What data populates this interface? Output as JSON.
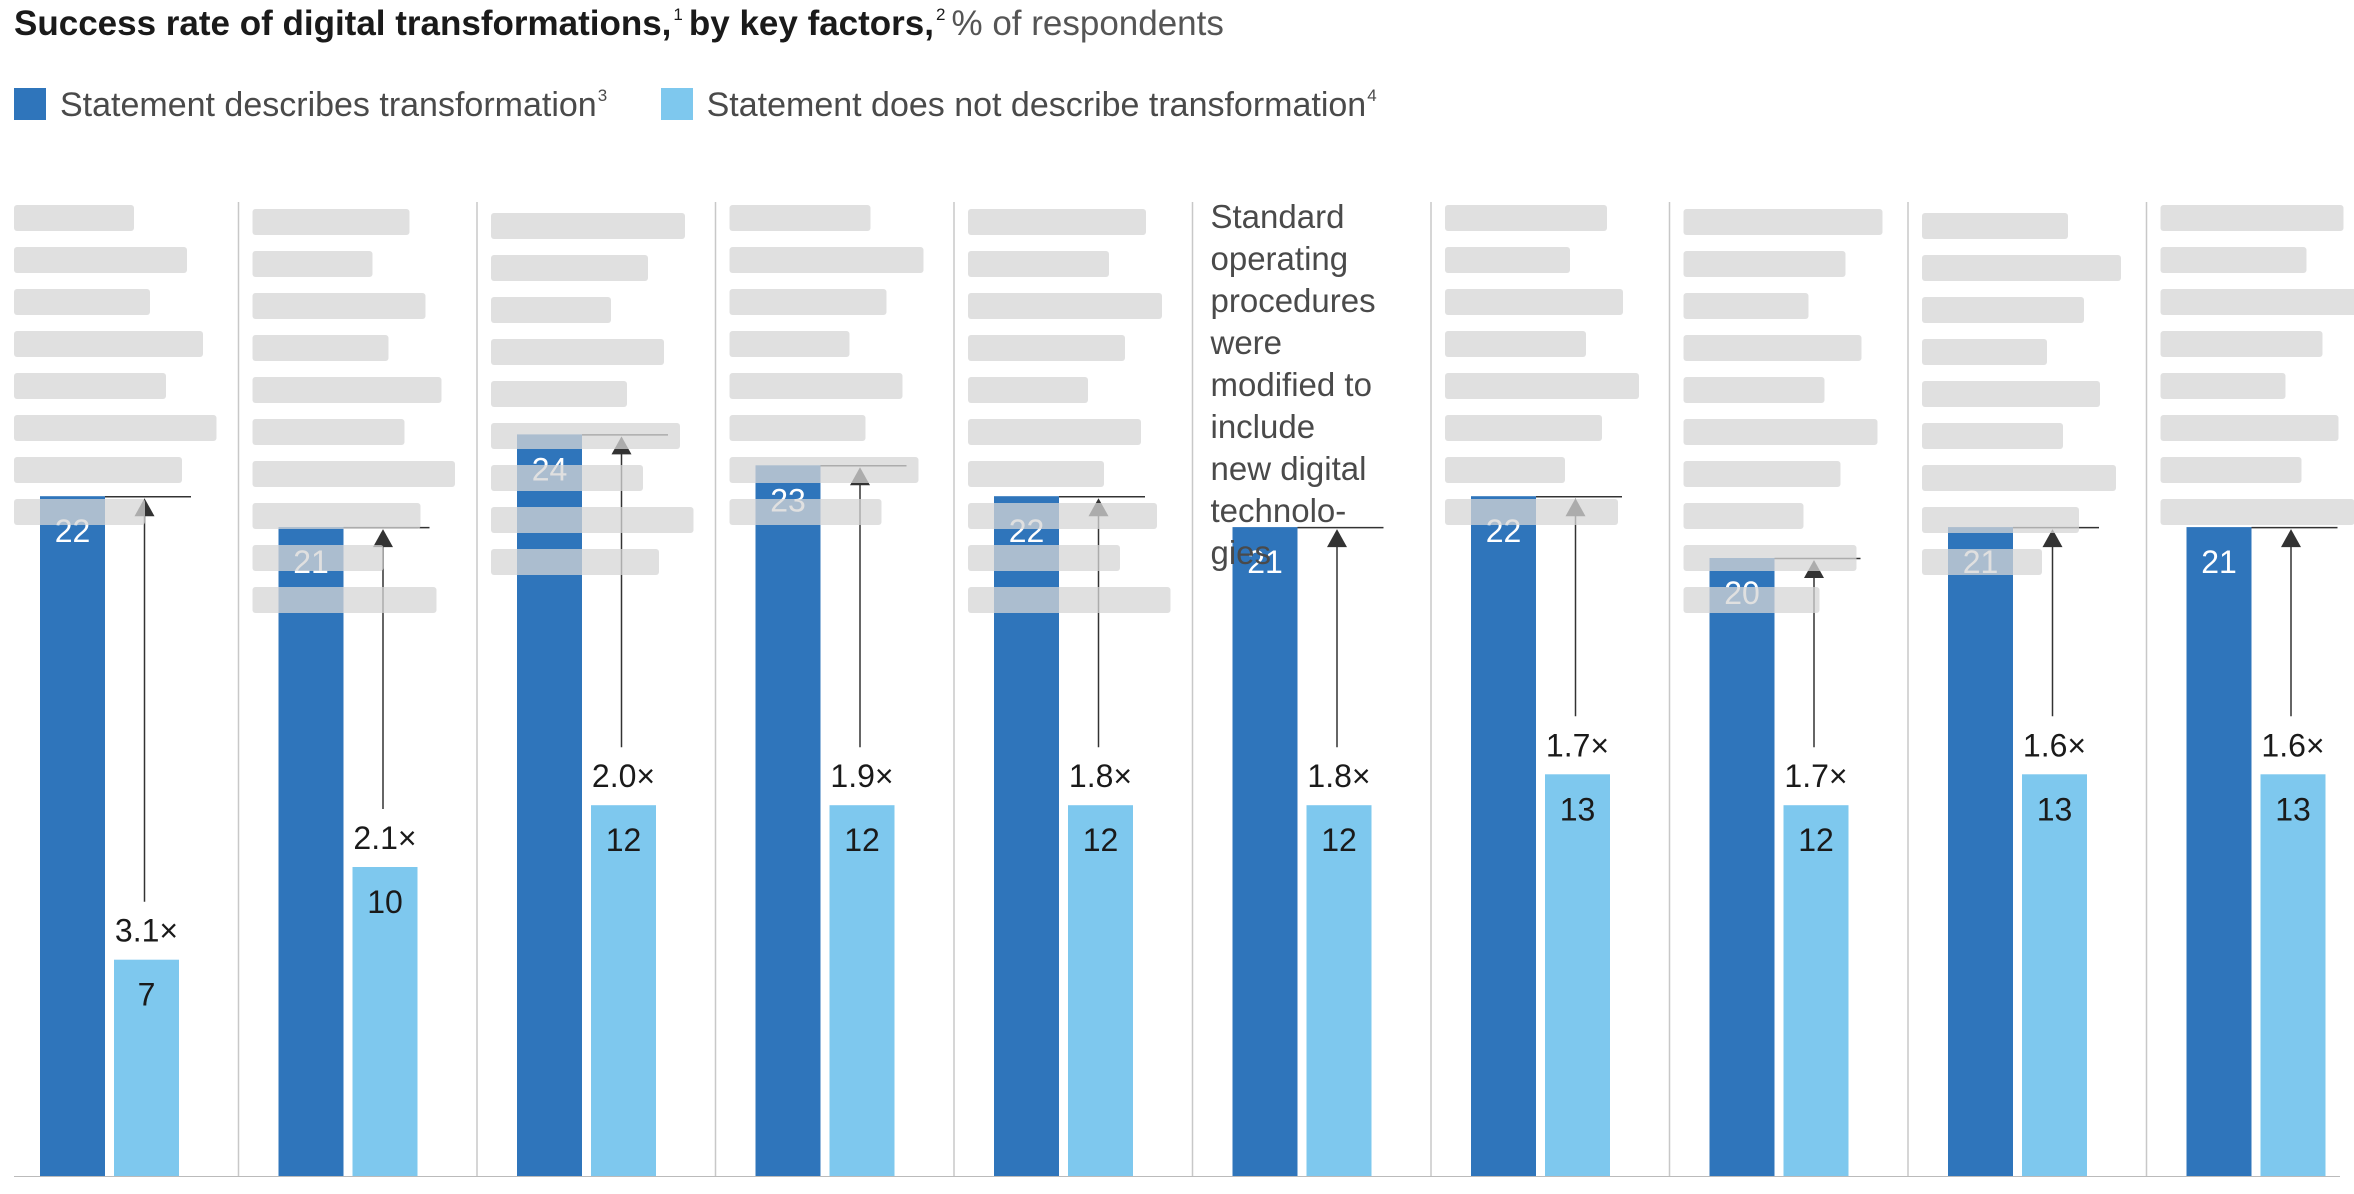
{
  "colors": {
    "describes": "#2f75bb",
    "does_not_describe": "#7ec8ee",
    "divider": "#c8c8c8",
    "arrow": "#333333",
    "redacted": "#d6d6d6"
  },
  "chart_data": {
    "type": "bar",
    "title": "Success rate of digital transformations,",
    "title_sup1": "1",
    "title_mid": "by key factors,",
    "title_sup2": "2",
    "title_unit": "% of respondents",
    "categories": [
      "",
      "",
      "",
      "",
      "",
      "Standard operating procedures were modified to include new digital technologies",
      "",
      "",
      "",
      ""
    ],
    "category_lines": [
      [],
      [],
      [],
      [],
      [],
      [
        "Standard",
        "operating",
        "procedures",
        "were",
        "modified to",
        "include",
        "new digital",
        "technolo-",
        "gies"
      ],
      [],
      [],
      [],
      []
    ],
    "series": [
      {
        "name": "Statement describes transformation",
        "footnote": "3",
        "values": [
          22,
          21,
          24,
          23,
          22,
          21,
          22,
          20,
          21,
          21
        ]
      },
      {
        "name": "Statement does not describe transformation",
        "footnote": "4",
        "values": [
          7,
          10,
          12,
          12,
          12,
          12,
          13,
          12,
          13,
          13
        ]
      }
    ],
    "multipliers": [
      "3.1×",
      "2.1×",
      "2.0×",
      "1.9×",
      "1.8×",
      "1.8×",
      "1.7×",
      "1.7×",
      "1.6×",
      "1.6×"
    ],
    "ylim": [
      0,
      24
    ],
    "legend": "top-left",
    "grid": false
  }
}
